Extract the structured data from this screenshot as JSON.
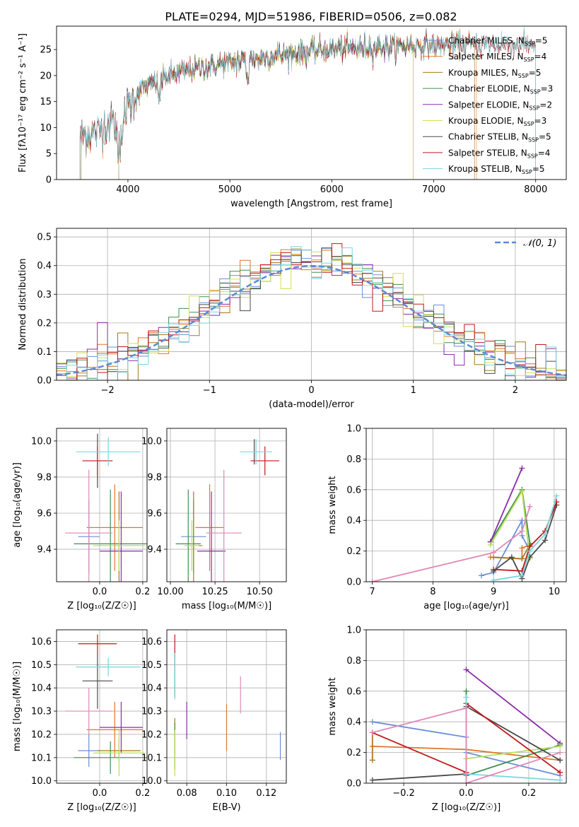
{
  "figure_title": "PLATE=0294, MJD=51986, FIBERID=0506, z=0.082",
  "colors": {
    "chabrier_miles": "#6a8fd8",
    "salpeter_miles": "#e0762a",
    "kroupa_miles": "#a8781e",
    "chabrier_elodie": "#3f8f4f",
    "salpeter_elodie": "#8a2da8",
    "kroupa_elodie": "#d4e04a",
    "chabrier_stelib": "#4a4a4a",
    "salpeter_stelib": "#c01818",
    "kroupa_stelib": "#7ad6e0",
    "pink": "#e088b8",
    "lime": "#b8e05a",
    "normal_curve": "#5a8ad8",
    "grid": "#b0b0b0"
  },
  "chart_data": [
    {
      "id": "spectrum",
      "type": "line",
      "title": "PLATE=0294, MJD=51986, FIBERID=0506, z=0.082",
      "xlabel": "wavelength [Angstrom, rest frame]",
      "ylabel": "Flux [fλ10⁻¹⁷ erg cm⁻² s⁻¹ A⁻¹]",
      "xlim": [
        3300,
        8300
      ],
      "ylim": [
        0,
        29.5
      ],
      "xticks": [
        4000,
        5000,
        6000,
        7000,
        8000
      ],
      "yticks": [
        0,
        5,
        10,
        15,
        20,
        25
      ],
      "grid": false,
      "legend_position": "top-right",
      "legend": [
        {
          "base": "Chabrier MILES, N",
          "sub": "SSP",
          "tail": "=5",
          "color_key": "chabrier_miles"
        },
        {
          "base": "Salpeter MILES, N",
          "sub": "SSP",
          "tail": "=4",
          "color_key": "salpeter_miles"
        },
        {
          "base": "Kroupa MILES, N",
          "sub": "SSP",
          "tail": "=5",
          "color_key": "kroupa_miles"
        },
        {
          "base": "Chabrier ELODIE, N",
          "sub": "SSP",
          "tail": "=3",
          "color_key": "chabrier_elodie"
        },
        {
          "base": "Salpeter ELODIE, N",
          "sub": "SSP",
          "tail": "=2",
          "color_key": "salpeter_elodie"
        },
        {
          "base": "Kroupa ELODIE, N",
          "sub": "SSP",
          "tail": "=3",
          "color_key": "kroupa_elodie"
        },
        {
          "base": "Chabrier STELIB, N",
          "sub": "SSP",
          "tail": "=5",
          "color_key": "chabrier_stelib"
        },
        {
          "base": "Salpeter STELIB, N",
          "sub": "SSP",
          "tail": "=4",
          "color_key": "salpeter_stelib"
        },
        {
          "base": "Kroupa STELIB, N",
          "sub": "SSP",
          "tail": "=5",
          "color_key": "kroupa_stelib"
        }
      ],
      "continuum_anchors": [
        [
          3530,
          8.5
        ],
        [
          3700,
          9
        ],
        [
          3800,
          11
        ],
        [
          3900,
          11
        ],
        [
          4000,
          14
        ],
        [
          4100,
          17
        ],
        [
          4300,
          19
        ],
        [
          4500,
          20.5
        ],
        [
          4700,
          21.5
        ],
        [
          5000,
          22.5
        ],
        [
          5500,
          24
        ],
        [
          6000,
          25
        ],
        [
          6500,
          25.5
        ],
        [
          7000,
          25.8
        ],
        [
          7500,
          26
        ],
        [
          8000,
          26
        ]
      ],
      "series_ranges": {
        "chabrier_miles": [
          3540,
          7400
        ],
        "salpeter_miles": [
          3530,
          7420
        ],
        "kroupa_miles": [
          3540,
          7400
        ],
        "chabrier_elodie": [
          3910,
          6800
        ],
        "salpeter_elodie": [
          3910,
          6800
        ],
        "kroupa_elodie": [
          3910,
          6800
        ],
        "chabrier_stelib": [
          3530,
          8000
        ],
        "salpeter_stelib": [
          3530,
          8000
        ],
        "kroupa_stelib": [
          3530,
          8000
        ]
      }
    },
    {
      "id": "residuals",
      "type": "step",
      "xlabel": "(data-model)/error",
      "ylabel": "Normed distribution",
      "xlim": [
        -2.5,
        2.5
      ],
      "ylim": [
        0,
        0.53
      ],
      "xticks": [
        -2,
        -1,
        0,
        1,
        2
      ],
      "yticks": [
        0.0,
        0.1,
        0.2,
        0.3,
        0.4,
        0.5
      ],
      "grid": true,
      "legend_position": "top-right",
      "legend_label": "𝒩(0, 1)",
      "bin_edges_start": -2.5,
      "bin_width": 0.1
    },
    {
      "id": "age_vs_Z",
      "type": "errorbar",
      "xlabel": "Z [log₁₀(Z/Z☉)]",
      "ylabel": "age  [log₁₀(age/yr)]",
      "xlim": [
        -0.2,
        0.22
      ],
      "ylim": [
        9.22,
        10.07
      ],
      "xticks": [
        0.0,
        0.2
      ],
      "yticks": [
        9.4,
        9.6,
        9.8,
        10.0
      ],
      "grid": true,
      "points": [
        {
          "color_key": "chabrier_miles",
          "x": -0.05,
          "xerr": 0.05,
          "y": 9.47,
          "yerr": 0.2
        },
        {
          "color_key": "salpeter_miles",
          "x": 0.07,
          "xerr": 0.13,
          "y": 9.52,
          "yerr": 0.24
        },
        {
          "color_key": "kroupa_miles",
          "x": 0.09,
          "xerr": 0.1,
          "y": 9.42,
          "yerr": 0.3
        },
        {
          "color_key": "chabrier_elodie",
          "x": 0.05,
          "xerr": 0.17,
          "y": 9.43,
          "yerr": 0.3
        },
        {
          "color_key": "salpeter_elodie",
          "x": 0.1,
          "xerr": 0.1,
          "y": 9.39,
          "yerr": 0.33
        },
        {
          "color_key": "lime",
          "x": 0.09,
          "xerr": 0.12,
          "y": 9.42,
          "yerr": 0.14
        },
        {
          "color_key": "chabrier_stelib",
          "x": -0.01,
          "xerr": 0.0,
          "y": 9.89,
          "yerr": 0.15
        },
        {
          "color_key": "salpeter_stelib",
          "x": -0.01,
          "xerr": 0.07,
          "y": 9.89,
          "yerr": 0.08
        },
        {
          "color_key": "kroupa_stelib",
          "x": 0.04,
          "xerr": 0.15,
          "y": 9.94,
          "yerr": 0.08
        },
        {
          "color_key": "pink",
          "x": -0.05,
          "xerr": 0.11,
          "y": 9.49,
          "yerr": 0.35
        }
      ]
    },
    {
      "id": "age_vs_mass",
      "type": "errorbar",
      "xlabel": "mass [log₁₀(M/M☉)]",
      "ylabel": "",
      "xlim": [
        9.98,
        10.65
      ],
      "ylim": [
        9.22,
        10.07
      ],
      "xticks": [
        10.0,
        10.25,
        10.5
      ],
      "xtick_labels": [
        "10.00",
        "10.25",
        "10.50"
      ],
      "yticks": [
        9.4,
        9.6,
        9.8,
        10.0
      ],
      "grid": true,
      "points": [
        {
          "color_key": "chabrier_miles",
          "x": 10.13,
          "xerr": 0.07,
          "y": 9.47,
          "yerr": 0.2
        },
        {
          "color_key": "salpeter_miles",
          "x": 10.22,
          "xerr": 0.08,
          "y": 9.52,
          "yerr": 0.24
        },
        {
          "color_key": "kroupa_miles",
          "x": 10.13,
          "xerr": 0.05,
          "y": 9.42,
          "yerr": 0.3
        },
        {
          "color_key": "chabrier_elodie",
          "x": 10.1,
          "xerr": 0.07,
          "y": 9.43,
          "yerr": 0.3
        },
        {
          "color_key": "salpeter_elodie",
          "x": 10.23,
          "xerr": 0.08,
          "y": 9.39,
          "yerr": 0.33
        },
        {
          "color_key": "lime",
          "x": 10.12,
          "xerr": 0.04,
          "y": 9.42,
          "yerr": 0.14
        },
        {
          "color_key": "chabrier_stelib",
          "x": 10.47,
          "xerr": 0.0,
          "y": 9.94,
          "yerr": 0.07
        },
        {
          "color_key": "salpeter_stelib",
          "x": 10.53,
          "xerr": 0.08,
          "y": 9.89,
          "yerr": 0.08
        },
        {
          "color_key": "kroupa_stelib",
          "x": 10.48,
          "xerr": 0.09,
          "y": 9.94,
          "yerr": 0.07
        },
        {
          "color_key": "pink",
          "x": 10.3,
          "xerr": 0.1,
          "y": 9.49,
          "yerr": 0.35
        }
      ]
    },
    {
      "id": "weight_vs_age",
      "type": "line",
      "xlabel": "age  [log₁₀(age/yr)]",
      "ylabel": "mass weight",
      "xlim": [
        6.9,
        10.2
      ],
      "ylim": [
        0,
        1
      ],
      "xticks": [
        7,
        8,
        9,
        10
      ],
      "yticks": [
        0.0,
        0.2,
        0.4,
        0.6,
        0.8,
        1.0
      ],
      "grid": true,
      "series": [
        {
          "color_key": "chabrier_miles",
          "x": [
            8.8,
            9.0,
            9.47,
            9.47,
            9.6
          ],
          "y": [
            0.04,
            0.06,
            0.4,
            0.3,
            0.2
          ]
        },
        {
          "color_key": "salpeter_miles",
          "x": [
            8.95,
            9.47,
            9.47,
            9.6
          ],
          "y": [
            0.16,
            0.15,
            0.22,
            0.24
          ]
        },
        {
          "color_key": "kroupa_miles",
          "x": [
            9.0,
            9.47,
            9.6
          ],
          "y": [
            0.16,
            0.15,
            0.24
          ]
        },
        {
          "color_key": "chabrier_elodie",
          "x": [
            8.95,
            9.47,
            9.6
          ],
          "y": [
            0.26,
            0.6,
            0.25
          ]
        },
        {
          "color_key": "salpeter_elodie",
          "x": [
            8.95,
            9.47
          ],
          "y": [
            0.26,
            0.74
          ]
        },
        {
          "color_key": "lime",
          "x": [
            8.95,
            9.47,
            9.6
          ],
          "y": [
            0.24,
            0.59,
            0.15
          ]
        },
        {
          "color_key": "chabrier_stelib",
          "x": [
            9.0,
            9.3,
            9.47,
            9.6,
            9.85,
            10.04
          ],
          "y": [
            0.07,
            0.16,
            0.02,
            0.16,
            0.27,
            0.5
          ]
        },
        {
          "color_key": "salpeter_stelib",
          "x": [
            9.0,
            9.47,
            9.6,
            9.85,
            10.04
          ],
          "y": [
            0.08,
            0.07,
            0.23,
            0.33,
            0.52
          ]
        },
        {
          "color_key": "kroupa_stelib",
          "x": [
            9.0,
            9.47,
            9.6,
            9.85,
            10.04
          ],
          "y": [
            0.01,
            0.04,
            0.2,
            0.31,
            0.56
          ]
        },
        {
          "color_key": "pink",
          "x": [
            7.0,
            9.0,
            9.47,
            9.6
          ],
          "y": [
            0.0,
            0.19,
            0.33,
            0.49
          ]
        }
      ]
    },
    {
      "id": "mass_vs_Z",
      "type": "errorbar",
      "xlabel": "Z [log₁₀(Z/Z☉)]",
      "ylabel": "mass [log₁₀(M/M☉)]",
      "xlim": [
        -0.2,
        0.22
      ],
      "ylim": [
        9.99,
        10.65
      ],
      "xticks": [
        0.0,
        0.2
      ],
      "yticks": [
        10.0,
        10.1,
        10.2,
        10.3,
        10.4,
        10.5,
        10.6
      ],
      "grid": true,
      "points": [
        {
          "color_key": "chabrier_miles",
          "x": -0.05,
          "xerr": 0.05,
          "y": 10.13,
          "yerr": 0.07
        },
        {
          "color_key": "salpeter_miles",
          "x": 0.07,
          "xerr": 0.13,
          "y": 10.22,
          "yerr": 0.12
        },
        {
          "color_key": "kroupa_miles",
          "x": 0.09,
          "xerr": 0.1,
          "y": 10.13,
          "yerr": 0.05
        },
        {
          "color_key": "chabrier_elodie",
          "x": 0.05,
          "xerr": 0.17,
          "y": 10.1,
          "yerr": 0.07
        },
        {
          "color_key": "salpeter_elodie",
          "x": 0.1,
          "xerr": 0.1,
          "y": 10.23,
          "yerr": 0.11
        },
        {
          "color_key": "lime",
          "x": 0.09,
          "xerr": 0.12,
          "y": 10.12,
          "yerr": 0.1
        },
        {
          "color_key": "chabrier_stelib",
          "x": -0.01,
          "xerr": 0.07,
          "y": 10.43,
          "yerr": 0.12
        },
        {
          "color_key": "salpeter_stelib",
          "x": -0.01,
          "xerr": 0.09,
          "y": 10.59,
          "yerr": 0.04
        },
        {
          "color_key": "kroupa_stelib",
          "x": 0.04,
          "xerr": 0.15,
          "y": 10.49,
          "yerr": 0.04
        },
        {
          "color_key": "pink",
          "x": -0.05,
          "xerr": 0.11,
          "y": 10.3,
          "yerr": 0.1
        }
      ]
    },
    {
      "id": "mass_vs_EBV",
      "type": "errorbar",
      "xlabel": "E(B-V)",
      "ylabel": "",
      "xlim": [
        0.07,
        0.13
      ],
      "ylim": [
        9.99,
        10.65
      ],
      "xticks": [
        0.08,
        0.1,
        0.12
      ],
      "xtick_labels": [
        "0.08",
        "0.10",
        "0.12"
      ],
      "yticks": [
        10.0,
        10.1,
        10.2,
        10.3,
        10.4,
        10.5,
        10.6
      ],
      "grid": true,
      "points": [
        {
          "color_key": "chabrier_miles",
          "x": 0.127,
          "xerr": 0,
          "y": 10.15,
          "yerr": 0.06
        },
        {
          "color_key": "salpeter_miles",
          "x": 0.1,
          "xerr": 0,
          "y": 10.23,
          "yerr": 0.1
        },
        {
          "color_key": "kroupa_miles",
          "x": 0.074,
          "xerr": 0,
          "y": 10.19,
          "yerr": 0.08
        },
        {
          "color_key": "chabrier_elodie",
          "x": 0.074,
          "xerr": 0,
          "y": 10.15,
          "yerr": 0.1
        },
        {
          "color_key": "salpeter_elodie",
          "x": 0.08,
          "xerr": 0,
          "y": 10.26,
          "yerr": 0.08
        },
        {
          "color_key": "lime",
          "x": 0.074,
          "xerr": 0,
          "y": 10.12,
          "yerr": 0.1
        },
        {
          "color_key": "chabrier_stelib",
          "x": 0.074,
          "xerr": 0,
          "y": 10.45,
          "yerr": 0.09
        },
        {
          "color_key": "salpeter_stelib",
          "x": 0.074,
          "xerr": 0,
          "y": 10.58,
          "yerr": 0.05
        },
        {
          "color_key": "kroupa_stelib",
          "x": 0.074,
          "xerr": 0,
          "y": 10.45,
          "yerr": 0.1
        },
        {
          "color_key": "pink",
          "x": 0.107,
          "xerr": 0,
          "y": 10.37,
          "yerr": 0.08
        }
      ]
    },
    {
      "id": "weight_vs_Z",
      "type": "line",
      "xlabel": "Z [log₁₀(Z/Z☉)]",
      "ylabel": "mass weight",
      "xlim": [
        -0.32,
        0.32
      ],
      "ylim": [
        0,
        1
      ],
      "xticks": [
        -0.2,
        0.0,
        0.2
      ],
      "xtick_labels": [
        "−0.2",
        "0.0",
        "0.2"
      ],
      "yticks": [
        0.0,
        0.2,
        0.4,
        0.6,
        0.8,
        1.0
      ],
      "grid": true,
      "series": [
        {
          "color_key": "chabrier_miles",
          "x": [
            -0.3,
            0.0,
            0.0,
            0.3
          ],
          "y": [
            0.4,
            0.3,
            0.2,
            0.05
          ]
        },
        {
          "color_key": "salpeter_miles",
          "x": [
            -0.3,
            0.0,
            0.3
          ],
          "y": [
            0.24,
            0.22,
            0.15
          ]
        },
        {
          "color_key": "kroupa_miles",
          "x": [
            -0.3,
            -0.3
          ],
          "y": [
            0.15,
            0.33
          ]
        },
        {
          "color_key": "chabrier_elodie",
          "x": [
            0.0,
            0.0,
            0.3
          ],
          "y": [
            0.6,
            0.05,
            0.25
          ]
        },
        {
          "color_key": "salpeter_elodie",
          "x": [
            0.0,
            0.3
          ],
          "y": [
            0.74,
            0.26
          ]
        },
        {
          "color_key": "lime",
          "x": [
            0.0,
            0.3
          ],
          "y": [
            0.16,
            0.24
          ]
        },
        {
          "color_key": "chabrier_stelib",
          "x": [
            -0.3,
            0.0,
            0.0,
            0.3
          ],
          "y": [
            0.02,
            0.06,
            0.5,
            0.15
          ]
        },
        {
          "color_key": "salpeter_stelib",
          "x": [
            -0.3,
            0.0,
            0.0,
            0.3
          ],
          "y": [
            0.33,
            0.07,
            0.52,
            0.07
          ]
        },
        {
          "color_key": "kroupa_stelib",
          "x": [
            0.0,
            0.0,
            0.3
          ],
          "y": [
            0.56,
            0.06,
            0.02
          ]
        },
        {
          "color_key": "pink",
          "x": [
            -0.3,
            0.0,
            0.0,
            0.3
          ],
          "y": [
            0.33,
            0.49,
            0.0,
            0.2
          ]
        }
      ]
    }
  ]
}
